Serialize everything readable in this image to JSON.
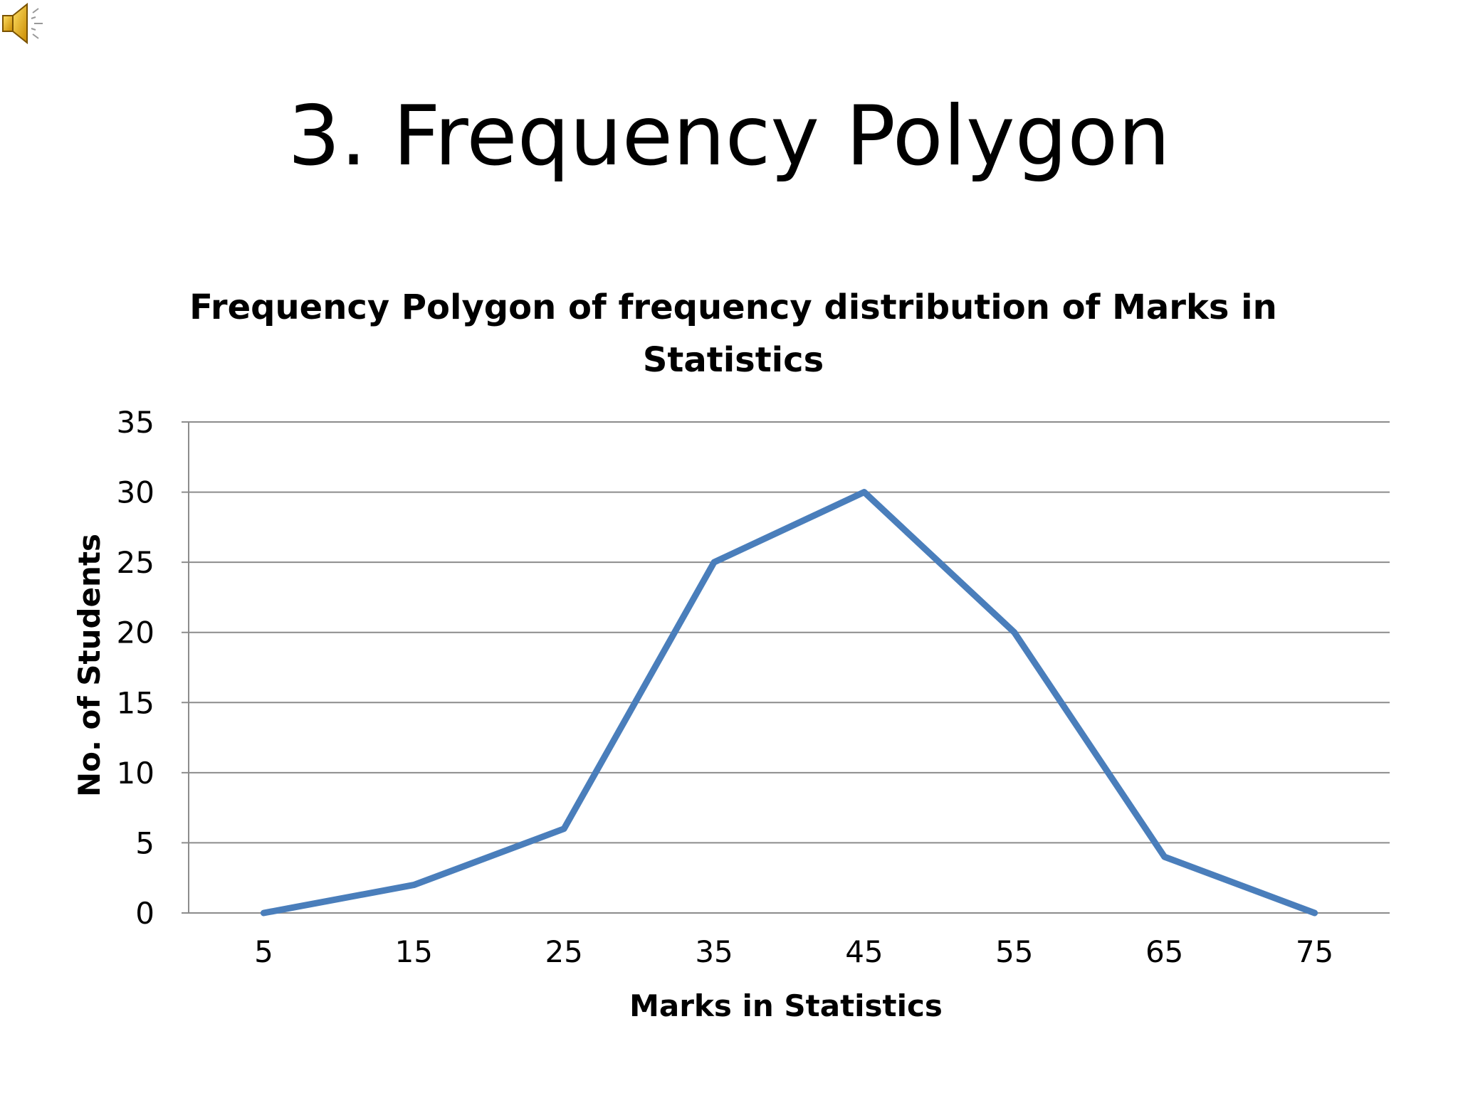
{
  "slide": {
    "title": "3. Frequency Polygon",
    "speaker_icon": "speaker-sound-icon"
  },
  "chart_data": {
    "type": "line",
    "title_lines": [
      "Frequency Polygon of frequency distribution of Marks in",
      "Statistics"
    ],
    "xlabel": "Marks in Statistics",
    "ylabel": "No. of Students",
    "categories": [
      "5",
      "15",
      "25",
      "35",
      "45",
      "55",
      "65",
      "75"
    ],
    "series": [
      {
        "values": [
          0,
          2,
          6,
          25,
          30,
          20,
          4,
          0
        ],
        "color": "#4a7ebb"
      }
    ],
    "ylim": [
      0,
      35
    ],
    "yticks": [
      0,
      5,
      10,
      15,
      20,
      25,
      30,
      35
    ],
    "grid": true,
    "legend": "none",
    "gridline_color": "#8c8c8c"
  }
}
